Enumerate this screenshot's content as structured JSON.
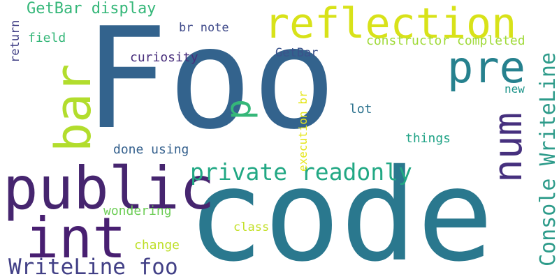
{
  "words": [
    {
      "text": "Foo",
      "color": "#33638d"
    },
    {
      "text": "code",
      "color": "#2a788e"
    },
    {
      "text": "public",
      "color": "#46256f"
    },
    {
      "text": "int",
      "color": "#481f71"
    },
    {
      "text": "reflection",
      "color": "#d8e219"
    },
    {
      "text": "bar",
      "color": "#b2dd2d"
    },
    {
      "text": "pre",
      "color": "#26818e"
    },
    {
      "text": "num",
      "color": "#46307e"
    },
    {
      "text": "private readonly",
      "color": "#22a884"
    },
    {
      "text": "Console WriteLine",
      "color": "#2d9b8a"
    },
    {
      "text": "WriteLine foo",
      "color": "#424086"
    },
    {
      "text": "p",
      "color": "#35b779"
    },
    {
      "text": "GetBar display",
      "color": "#35b779"
    },
    {
      "text": "constructor completed",
      "color": "#a0da39"
    },
    {
      "text": "curiosity",
      "color": "#472d7b"
    },
    {
      "text": "br note",
      "color": "#3e4989"
    },
    {
      "text": "GetBar",
      "color": "#3b528b"
    },
    {
      "text": "field",
      "color": "#35b779"
    },
    {
      "text": "return",
      "color": "#424086"
    },
    {
      "text": "execution br",
      "color": "#e4e51a"
    },
    {
      "text": "new",
      "color": "#1f958b"
    },
    {
      "text": "lot",
      "color": "#2c728e"
    },
    {
      "text": "things",
      "color": "#20a386"
    },
    {
      "text": "done using",
      "color": "#34608d"
    },
    {
      "text": "wondering",
      "color": "#6ece58"
    },
    {
      "text": "class",
      "color": "#c2df23"
    },
    {
      "text": "change",
      "color": "#bddf26"
    }
  ]
}
